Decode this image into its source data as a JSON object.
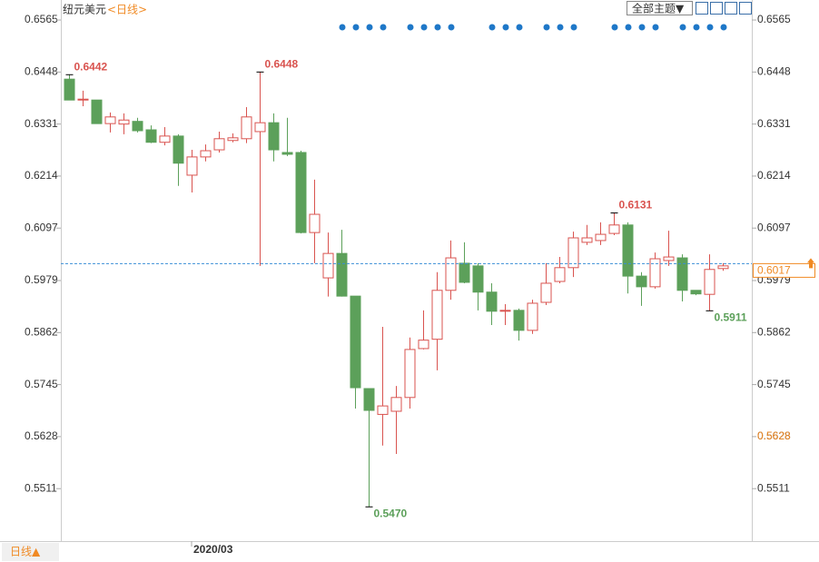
{
  "chart_data": {
    "type": "candlestick",
    "title": "纽元美元",
    "subtitle": "<日线>",
    "toolbar": "全部主题▼",
    "period_button": "日线▲",
    "categories": [
      null,
      null,
      null,
      null,
      null,
      null,
      null,
      null,
      null,
      "2020/03",
      null,
      null,
      null,
      null,
      null,
      null,
      null,
      null,
      null,
      null,
      null,
      null,
      null,
      null,
      null,
      null,
      null,
      null,
      null,
      null,
      null,
      null,
      null,
      null,
      null,
      null,
      null,
      null,
      null,
      null,
      null,
      null,
      null,
      null,
      null,
      null,
      null,
      null,
      null
    ],
    "open": [
      0.6432,
      0.6385,
      0.6385,
      0.6332,
      0.6331,
      0.6337,
      0.6318,
      0.629,
      0.6304,
      0.6216,
      0.6257,
      0.6273,
      0.6294,
      0.6298,
      0.6314,
      0.6334,
      0.6267,
      0.6267,
      0.6087,
      0.5985,
      0.604,
      0.5944,
      0.5736,
      0.5678,
      0.5685,
      0.5716,
      0.5826,
      0.5847,
      0.5957,
      0.6018,
      0.6012,
      0.5953,
      0.5912,
      0.5912,
      0.5867,
      0.593,
      0.5977,
      0.6008,
      0.6065,
      0.6069,
      0.6085,
      0.6104,
      0.5989,
      0.5965,
      0.6024,
      0.603,
      0.5957,
      0.5948,
      0.6006
    ],
    "high": [
      0.6442,
      0.6406,
      0.6385,
      0.6357,
      0.6355,
      0.6345,
      0.6328,
      0.6324,
      0.6308,
      0.6273,
      0.6285,
      0.6314,
      0.631,
      0.6369,
      0.6448,
      0.6355,
      0.6345,
      0.6271,
      0.6206,
      0.6087,
      0.6093,
      0.5944,
      0.5736,
      0.5875,
      0.5742,
      0.5851,
      0.5912,
      0.5998,
      0.6069,
      0.6065,
      0.6018,
      0.5973,
      0.5926,
      0.5916,
      0.5936,
      0.6018,
      0.6032,
      0.6089,
      0.6104,
      0.611,
      0.6131,
      0.611,
      0.5998,
      0.6042,
      0.6091,
      0.6038,
      0.5957,
      0.6038,
      0.6018
    ],
    "low": [
      0.6385,
      0.6371,
      0.6332,
      0.6312,
      0.6308,
      0.6312,
      0.6288,
      0.6283,
      0.6192,
      0.6177,
      0.6247,
      0.6267,
      0.629,
      0.6288,
      0.6012,
      0.6247,
      0.6259,
      0.6085,
      0.6018,
      0.5943,
      0.5943,
      0.5691,
      0.547,
      0.5608,
      0.5589,
      0.5691,
      0.5824,
      0.5777,
      0.5936,
      0.5973,
      0.5912,
      0.5879,
      0.5879,
      0.5844,
      0.5859,
      0.5924,
      0.5973,
      0.5987,
      0.6059,
      0.6059,
      0.6081,
      0.595,
      0.5922,
      0.5961,
      0.6012,
      0.5932,
      0.5946,
      0.5911,
      0.6001
    ],
    "close": [
      0.6385,
      0.6387,
      0.6332,
      0.6347,
      0.634,
      0.6316,
      0.629,
      0.6304,
      0.6243,
      0.6257,
      0.6271,
      0.6298,
      0.63,
      0.6347,
      0.6334,
      0.6273,
      0.6263,
      0.6087,
      0.6128,
      0.604,
      0.5944,
      0.5738,
      0.5687,
      0.5697,
      0.5716,
      0.5824,
      0.5845,
      0.5957,
      0.603,
      0.5975,
      0.5953,
      0.591,
      0.5912,
      0.5867,
      0.5928,
      0.5973,
      0.6008,
      0.6075,
      0.6075,
      0.6083,
      0.6104,
      0.5989,
      0.5965,
      0.6028,
      0.6032,
      0.5957,
      0.5949,
      0.6004,
      0.6012
    ],
    "high_labels": [
      "0.6442",
      null,
      null,
      null,
      null,
      null,
      null,
      null,
      null,
      null,
      null,
      null,
      null,
      null,
      "0.6448",
      null,
      null,
      null,
      null,
      null,
      null,
      null,
      null,
      null,
      null,
      null,
      null,
      null,
      null,
      null,
      null,
      null,
      null,
      null,
      null,
      null,
      null,
      null,
      null,
      null,
      "0.6131",
      null,
      null,
      null,
      null,
      null,
      null,
      null,
      null
    ],
    "low_labels": [
      null,
      null,
      null,
      null,
      null,
      null,
      null,
      null,
      null,
      null,
      null,
      null,
      null,
      null,
      null,
      null,
      null,
      null,
      null,
      null,
      null,
      null,
      "0.5470",
      null,
      null,
      null,
      null,
      null,
      null,
      null,
      null,
      null,
      null,
      null,
      null,
      null,
      null,
      null,
      null,
      null,
      null,
      null,
      null,
      null,
      null,
      null,
      null,
      "0.5911",
      null
    ],
    "events": [
      20,
      21,
      22,
      23,
      25,
      26,
      27,
      28,
      31,
      32,
      33,
      35,
      36,
      37,
      40,
      41,
      42,
      43,
      45,
      46,
      47,
      48
    ],
    "up_color": "#d9534f",
    "down_color": "#5ca05a",
    "event_color": "#1f78c8",
    "last_price": 0.6017,
    "marker_price": 0.5628,
    "marker_color": "#f08a24",
    "ylim": [
      0.5395,
      0.661
    ],
    "yticks": [
      0.6565,
      0.6448,
      0.6331,
      0.6214,
      0.6097,
      0.5979,
      0.5862,
      0.5745,
      0.5628,
      0.5511
    ]
  }
}
